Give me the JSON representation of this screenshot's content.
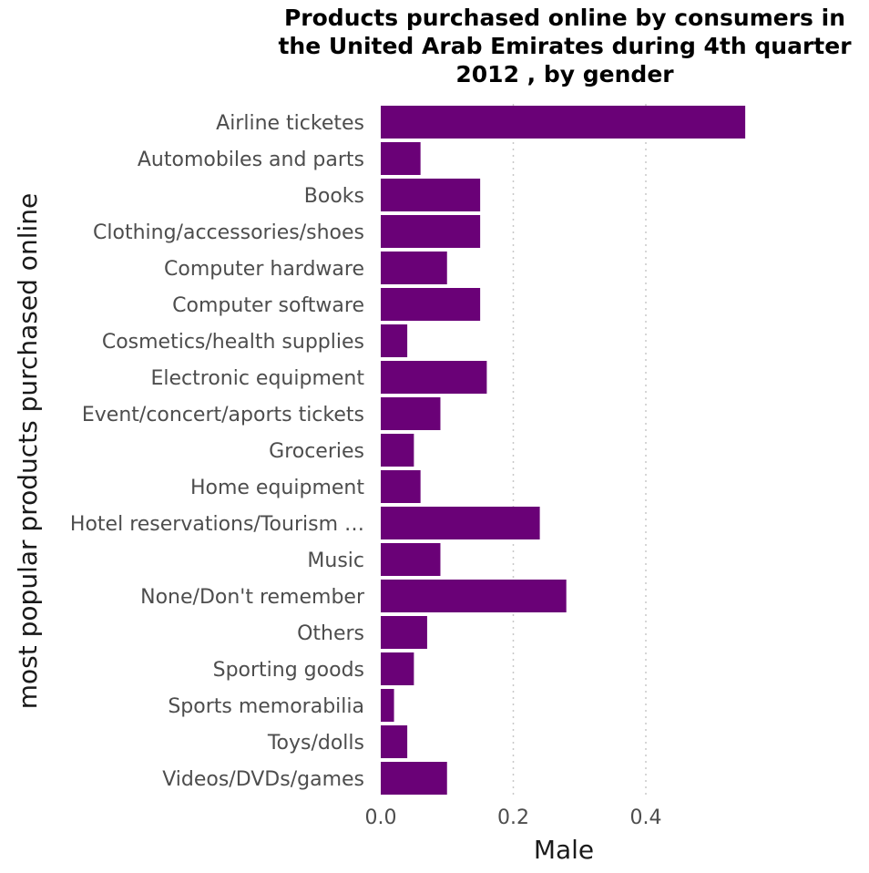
{
  "chart_data": {
    "type": "bar",
    "orientation": "horizontal",
    "title": "Products purchased online by consumers in the United Arab Emirates during 4th quarter 2012 , by gender",
    "xlabel": "Male",
    "ylabel": "most popular products purchased online",
    "categories": [
      "Airline ticketes",
      "Automobiles and parts",
      "Books",
      "Clothing/accessories/shoes",
      "Computer hardware",
      "Computer software",
      "Cosmetics/health supplies",
      "Electronic equipment",
      "Event/concert/aports tickets",
      "Groceries",
      "Home equipment",
      "Hotel reservations/Tourism …",
      "Music",
      "None/Don't remember",
      "Others",
      "Sporting goods",
      "Sports memorabilia",
      "Toys/dolls",
      "Videos/DVDs/games"
    ],
    "values": [
      0.55,
      0.06,
      0.15,
      0.15,
      0.1,
      0.15,
      0.04,
      0.16,
      0.09,
      0.05,
      0.06,
      0.24,
      0.09,
      0.28,
      0.07,
      0.05,
      0.02,
      0.04,
      0.1
    ],
    "xlim": [
      0,
      0.56
    ],
    "xticks": [
      0.0,
      0.2,
      0.4
    ],
    "xtick_labels": [
      "0.0",
      "0.2",
      "0.4"
    ],
    "grid": "vertical dotted",
    "bar_color": "#6a0177"
  }
}
